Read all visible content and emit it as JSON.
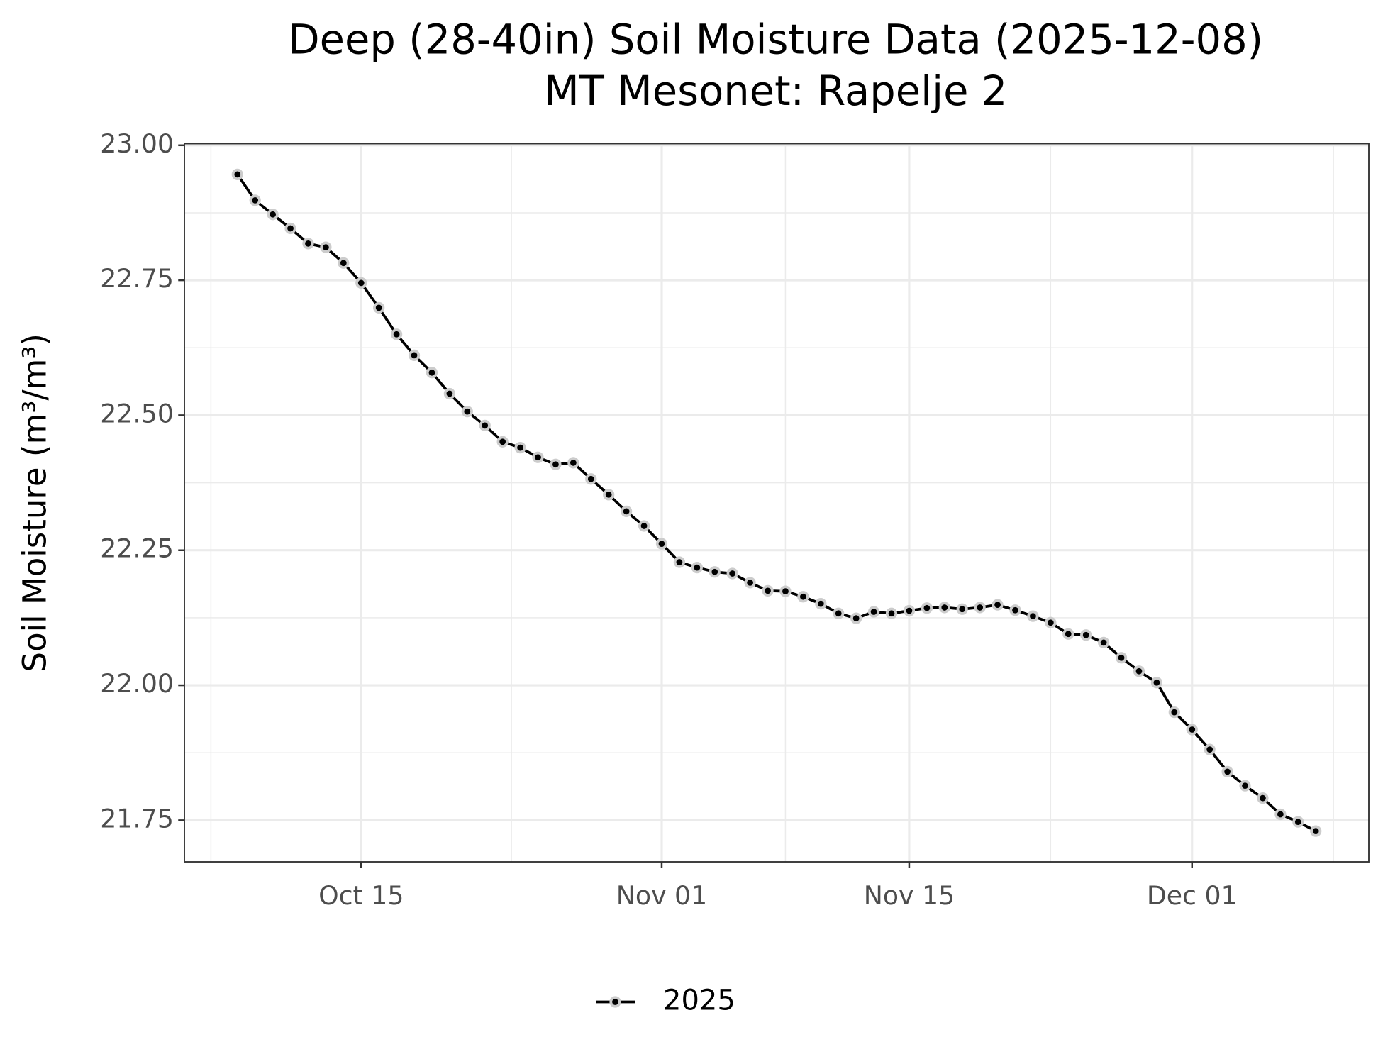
{
  "chart_data": {
    "type": "line",
    "title": "Deep (28-40in) Soil Moisture Data (2025-12-08)",
    "subtitle": "MT Mesonet: Rapelje 2",
    "y_label": "Soil Moisture (m³/m³)",
    "x": [
      "Oct 08",
      "Oct 09",
      "Oct 10",
      "Oct 11",
      "Oct 12",
      "Oct 13",
      "Oct 14",
      "Oct 15",
      "Oct 16",
      "Oct 17",
      "Oct 18",
      "Oct 19",
      "Oct 20",
      "Oct 21",
      "Oct 22",
      "Oct 23",
      "Oct 24",
      "Oct 25",
      "Oct 26",
      "Oct 27",
      "Oct 28",
      "Oct 29",
      "Oct 30",
      "Oct 31",
      "Nov 01",
      "Nov 02",
      "Nov 03",
      "Nov 04",
      "Nov 05",
      "Nov 06",
      "Nov 07",
      "Nov 08",
      "Nov 09",
      "Nov 10",
      "Nov 11",
      "Nov 12",
      "Nov 13",
      "Nov 14",
      "Nov 15",
      "Nov 16",
      "Nov 17",
      "Nov 18",
      "Nov 19",
      "Nov 20",
      "Nov 21",
      "Nov 22",
      "Nov 23",
      "Nov 24",
      "Nov 25",
      "Nov 26",
      "Nov 27",
      "Nov 28",
      "Nov 29",
      "Nov 30",
      "Dec 01",
      "Dec 02",
      "Dec 03",
      "Dec 04",
      "Dec 05",
      "Dec 06",
      "Dec 07",
      "Dec 08"
    ],
    "series": [
      {
        "name": "2025",
        "color": "#000000",
        "marker_edge": "#cccccc",
        "values": [
          22.946,
          22.898,
          22.872,
          22.846,
          22.818,
          22.811,
          22.782,
          22.745,
          22.699,
          22.65,
          22.611,
          22.579,
          22.54,
          22.507,
          22.481,
          22.451,
          22.44,
          22.422,
          22.409,
          22.412,
          22.382,
          22.353,
          22.322,
          22.295,
          22.262,
          22.228,
          22.218,
          22.21,
          22.207,
          22.19,
          22.175,
          22.174,
          22.164,
          22.151,
          22.133,
          22.124,
          22.136,
          22.133,
          22.138,
          22.143,
          22.144,
          22.141,
          22.144,
          22.149,
          22.139,
          22.128,
          22.116,
          22.095,
          22.093,
          22.079,
          22.051,
          22.026,
          22.005,
          21.95,
          21.918,
          21.881,
          21.84,
          21.814,
          21.791,
          21.761,
          21.747,
          21.73
        ]
      }
    ],
    "xlim": [
      "Oct 05",
      "Dec 11"
    ],
    "xticks": [
      "Oct 15",
      "Nov 01",
      "Nov 15",
      "Dec 01"
    ],
    "ylim": [
      21.673,
      23.003
    ],
    "yticks": [
      {
        "value": 21.75,
        "label": "21.75"
      },
      {
        "value": 22,
        "label": "22.00"
      },
      {
        "value": 22.25,
        "label": "22.25"
      },
      {
        "value": 22.5,
        "label": "22.50"
      },
      {
        "value": 22.75,
        "label": "22.75"
      },
      {
        "value": 23,
        "label": "23.00"
      }
    ],
    "grid": true,
    "legend": "bottom"
  }
}
